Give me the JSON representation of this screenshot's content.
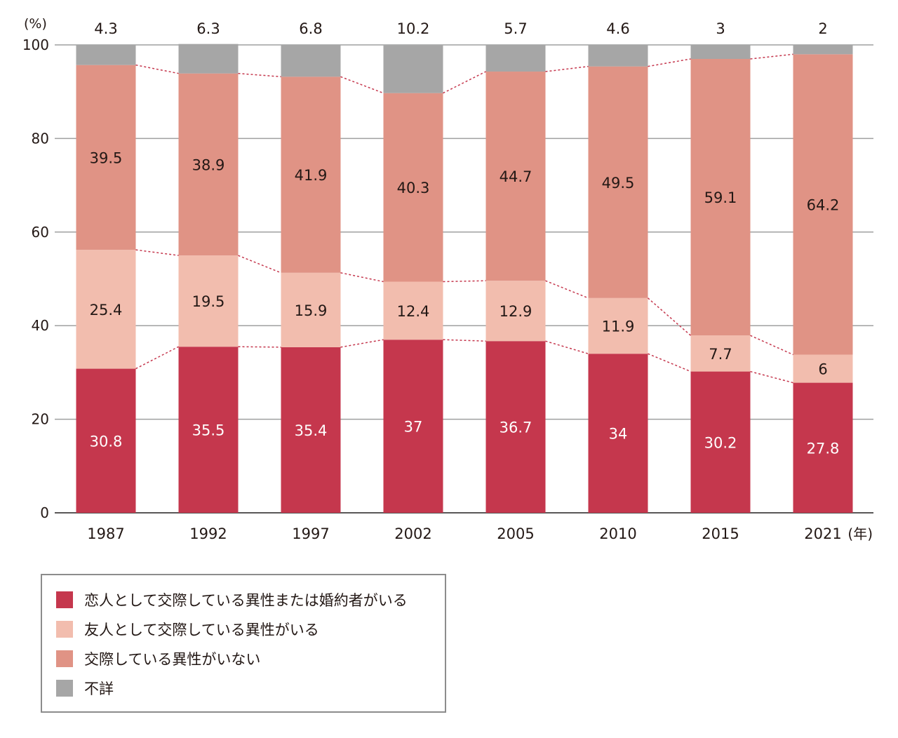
{
  "chart_data": {
    "type": "bar",
    "stacked": true,
    "unit_label": "(%)",
    "x_unit_label": "(年)",
    "categories": [
      "1987",
      "1992",
      "1997",
      "2002",
      "2005",
      "2010",
      "2015",
      "2021"
    ],
    "ylim": [
      0,
      100
    ],
    "yticks": [
      0,
      20,
      40,
      60,
      80,
      100
    ],
    "grid": true,
    "legend_position": "bottom-left",
    "series": [
      {
        "name": "恋人として交際している異性または婚約者がいる",
        "color": "#c5374d",
        "label_color": "#ffffff",
        "values": [
          30.8,
          35.5,
          35.4,
          37.0,
          36.7,
          34.0,
          30.2,
          27.8
        ]
      },
      {
        "name": "友人として交際している異性がいる",
        "color": "#f2bdae",
        "label_color": "#231815",
        "values": [
          25.4,
          19.5,
          15.9,
          12.4,
          12.9,
          11.9,
          7.7,
          6.0
        ]
      },
      {
        "name": "交際している異性がいない",
        "color": "#e09385",
        "label_color": "#231815",
        "values": [
          39.5,
          38.9,
          41.9,
          40.3,
          44.7,
          49.5,
          59.1,
          64.2
        ]
      },
      {
        "name": "不詳",
        "color": "#a6a6a6",
        "label_color": "#231815",
        "values": [
          4.3,
          6.3,
          6.8,
          10.2,
          5.7,
          4.6,
          3.0,
          2.0
        ]
      }
    ]
  }
}
